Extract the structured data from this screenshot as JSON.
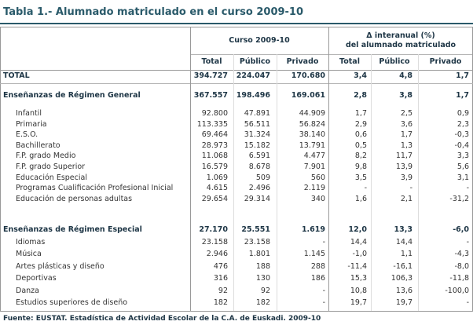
{
  "title": "Tabla 1.- Alumnado matriculado en el curso 2009-10",
  "header": {
    "group1": "Curso 2009-10",
    "group2_line1": "Δ interanual (%)",
    "group2_line2": "del alumnado matriculado",
    "columns": [
      "Total",
      "Público",
      "Privado",
      "Total",
      "Público",
      "Privado"
    ]
  },
  "total": {
    "label": "TOTAL",
    "values": [
      "394.727",
      "224.047",
      "170.680",
      "3,4",
      "4,8",
      "1,7"
    ]
  },
  "groups": [
    {
      "label": "Enseñanzas de Régimen General",
      "values": [
        "367.557",
        "198.496",
        "169.061",
        "2,8",
        "3,8",
        "1,7"
      ],
      "rows": [
        {
          "label": "Infantil",
          "values": [
            "92.800",
            "47.891",
            "44.909",
            "1,7",
            "2,5",
            "0,9"
          ]
        },
        {
          "label": "Primaria",
          "values": [
            "113.335",
            "56.511",
            "56.824",
            "2,9",
            "3,6",
            "2,3"
          ]
        },
        {
          "label": "E.S.O.",
          "values": [
            "69.464",
            "31.324",
            "38.140",
            "0,6",
            "1,7",
            "-0,3"
          ]
        },
        {
          "label": "Bachillerato",
          "values": [
            "28.973",
            "15.182",
            "13.791",
            "0,5",
            "1,3",
            "-0,4"
          ]
        },
        {
          "label": "F.P. grado Medio",
          "values": [
            "11.068",
            "6.591",
            "4.477",
            "8,2",
            "11,7",
            "3,3"
          ]
        },
        {
          "label": "F.P. grado Superior",
          "values": [
            "16.579",
            "8.678",
            "7.901",
            "9,8",
            "13,9",
            "5,6"
          ]
        },
        {
          "label": "Educación Especial",
          "values": [
            "1.069",
            "509",
            "560",
            "3,5",
            "3,9",
            "3,1"
          ]
        },
        {
          "label": "Programas Cualificación Profesional Inicial",
          "values": [
            "4.615",
            "2.496",
            "2.119",
            "-",
            "-",
            "-"
          ]
        },
        {
          "label": "Educación de personas adultas",
          "values": [
            "29.654",
            "29.314",
            "340",
            "1,6",
            "2,1",
            "-31,2"
          ]
        }
      ]
    },
    {
      "label": "Enseñanzas de Régimen Especial",
      "values": [
        "27.170",
        "25.551",
        "1.619",
        "12,0",
        "13,3",
        "-6,0"
      ],
      "rows": [
        {
          "label": "Idiomas",
          "values": [
            "23.158",
            "23.158",
            "-",
            "14,4",
            "14,4",
            "-"
          ]
        },
        {
          "label": "Música",
          "values": [
            "2.946",
            "1.801",
            "1.145",
            "-1,0",
            "1,1",
            "-4,3"
          ]
        },
        {
          "label": "Artes plásticas y diseño",
          "values": [
            "476",
            "188",
            "288",
            "-11,4",
            "-16,1",
            "-8,0"
          ]
        },
        {
          "label": "Deportivas",
          "values": [
            "316",
            "130",
            "186",
            "15,3",
            "106,3",
            "-11,8"
          ]
        },
        {
          "label": "Danza",
          "values": [
            "92",
            "92",
            "-",
            "10,8",
            "13,6",
            "-100,0"
          ]
        },
        {
          "label": "Estudios superiores de diseño",
          "values": [
            "182",
            "182",
            "-",
            "19,7",
            "19,7",
            "-"
          ]
        }
      ]
    }
  ],
  "source": "Fuente: EUSTAT. Estadística de Actividad Escolar de la C.A. de Euskadi. 2009-10"
}
